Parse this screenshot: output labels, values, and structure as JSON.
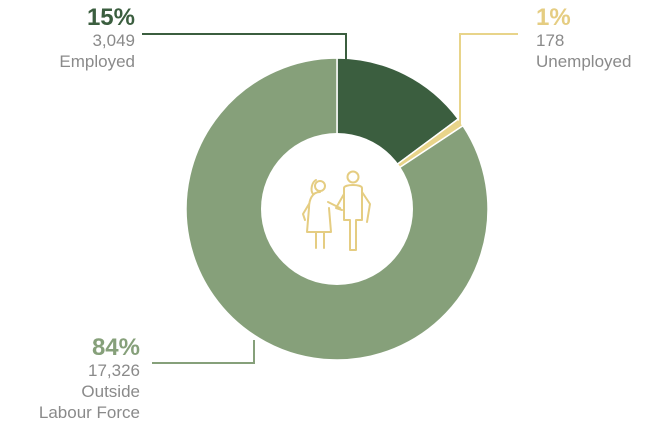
{
  "chart_data": {
    "type": "pie",
    "variant": "donut",
    "center_icon": "elderly-couple-icon",
    "slices": [
      {
        "label": "Employed",
        "percent_label": "15%",
        "count_label": "3,049",
        "value": 3049,
        "color": "#3b5e3f"
      },
      {
        "label": "Unemployed",
        "percent_label": "1%",
        "count_label": "178",
        "value": 178,
        "color": "#e8d48a"
      },
      {
        "label": "Outside Labour Force",
        "percent_label": "84%",
        "count_label": "17,326",
        "value": 17326,
        "color": "#86a07a"
      }
    ],
    "olf_lines": [
      "Outside",
      "Labour Force"
    ]
  },
  "colors": {
    "icon": "#e5cd82",
    "center": "#ffffff",
    "muted_text": "#8a8a8a"
  }
}
